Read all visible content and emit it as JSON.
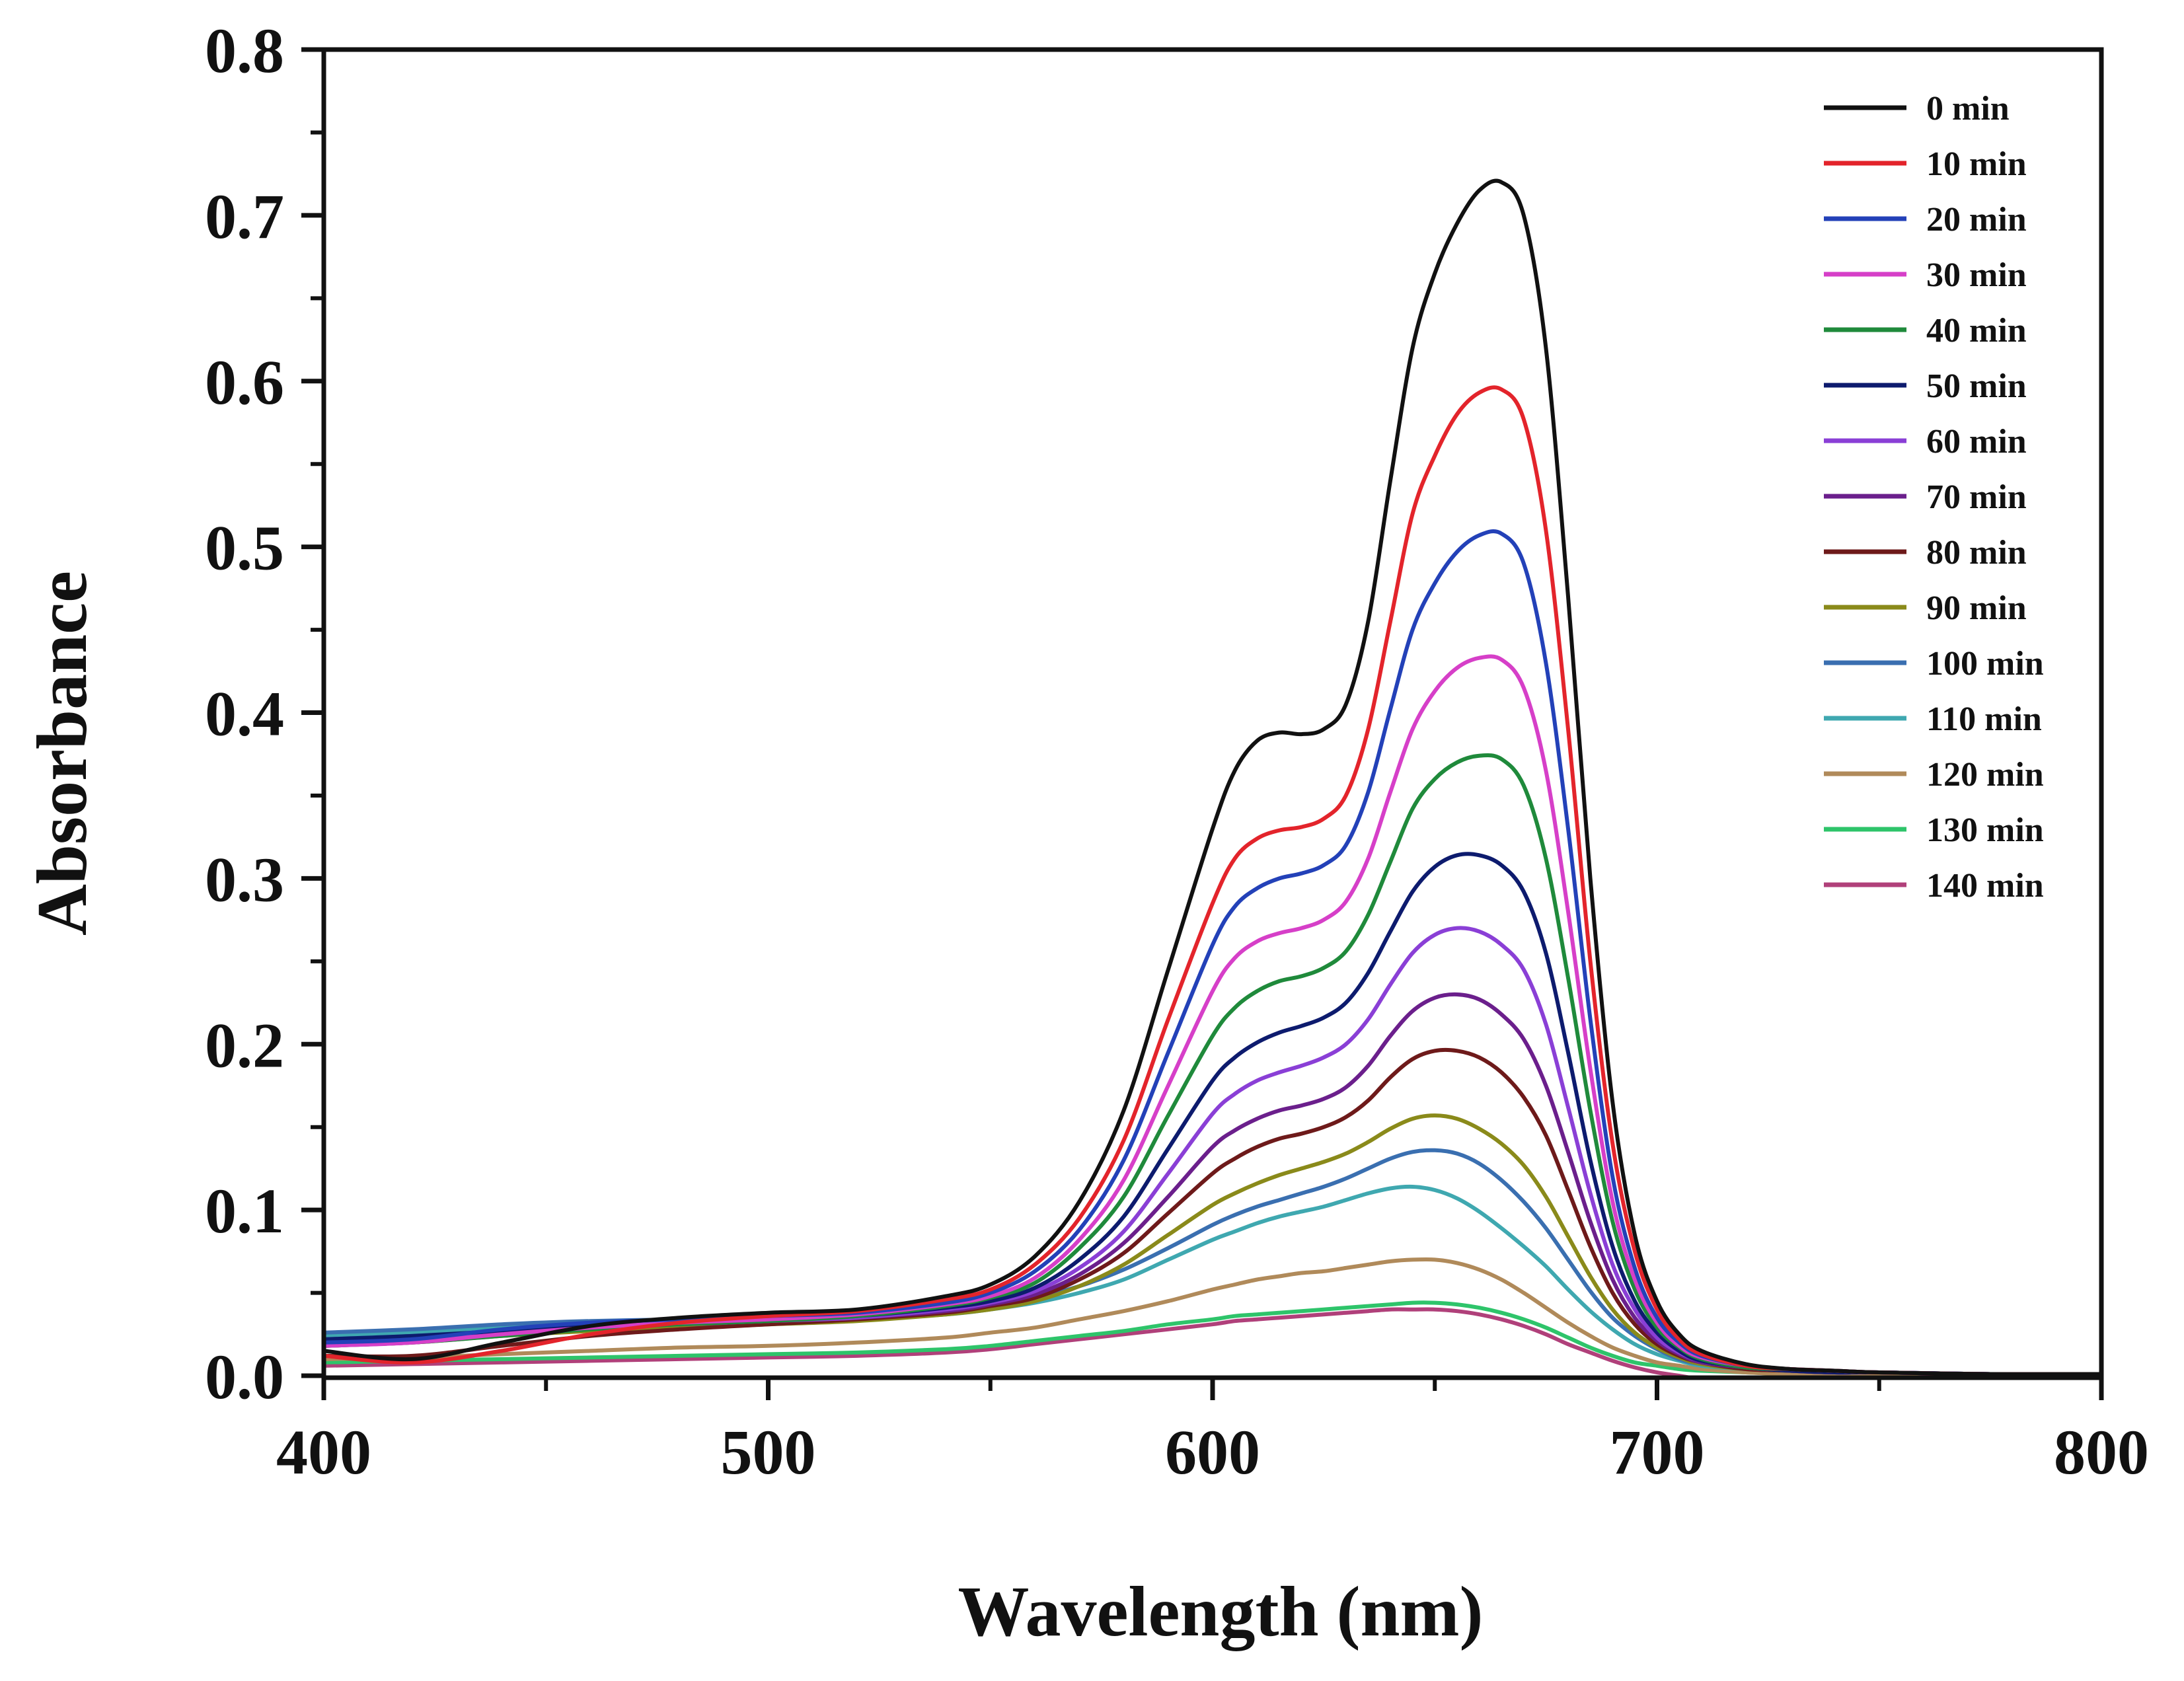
{
  "chart_data": {
    "type": "line",
    "title": "",
    "xlabel": "Wavelength (nm)",
    "ylabel": "Absorbance",
    "xlim": [
      400,
      800
    ],
    "ylim": [
      0.0,
      0.8
    ],
    "xticks": [
      400,
      500,
      600,
      700,
      800
    ],
    "xtick_labels": [
      "400",
      "500",
      "600",
      "700",
      "800"
    ],
    "yticks": [
      0.0,
      0.1,
      0.2,
      0.3,
      0.4,
      0.5,
      0.6,
      0.7,
      0.8
    ],
    "ytick_labels": [
      "0.0",
      "0.1",
      "0.2",
      "0.3",
      "0.4",
      "0.5",
      "0.6",
      "0.7",
      "0.8"
    ],
    "legend_position": "top-right",
    "grid": false,
    "x": [
      400,
      420,
      440,
      460,
      480,
      500,
      520,
      540,
      550,
      560,
      570,
      580,
      590,
      600,
      605,
      610,
      615,
      620,
      625,
      630,
      635,
      640,
      645,
      650,
      655,
      660,
      665,
      670,
      675,
      680,
      685,
      690,
      695,
      700,
      705,
      710,
      720,
      730,
      740,
      750,
      775,
      800
    ],
    "series": [
      {
        "name": "0 min",
        "color": "#111111",
        "values": [
          0.015,
          0.01,
          0.02,
          0.03,
          0.035,
          0.038,
          0.04,
          0.048,
          0.055,
          0.072,
          0.105,
          0.16,
          0.245,
          0.33,
          0.365,
          0.383,
          0.388,
          0.387,
          0.39,
          0.405,
          0.455,
          0.54,
          0.62,
          0.665,
          0.695,
          0.715,
          0.72,
          0.7,
          0.62,
          0.47,
          0.3,
          0.165,
          0.085,
          0.045,
          0.025,
          0.015,
          0.007,
          0.004,
          0.003,
          0.002,
          0.001,
          0.001
        ]
      },
      {
        "name": "10 min",
        "color": "#e3242b",
        "values": [
          0.012,
          0.008,
          0.015,
          0.025,
          0.032,
          0.036,
          0.039,
          0.046,
          0.052,
          0.067,
          0.095,
          0.142,
          0.215,
          0.285,
          0.312,
          0.324,
          0.329,
          0.331,
          0.336,
          0.35,
          0.39,
          0.455,
          0.52,
          0.555,
          0.58,
          0.593,
          0.595,
          0.577,
          0.51,
          0.39,
          0.25,
          0.14,
          0.075,
          0.04,
          0.022,
          0.013,
          0.006,
          0.004,
          0.003,
          0.002,
          0.001,
          0.001
        ]
      },
      {
        "name": "20 min",
        "color": "#2341b8",
        "values": [
          0.02,
          0.022,
          0.028,
          0.032,
          0.034,
          0.036,
          0.038,
          0.044,
          0.05,
          0.063,
          0.088,
          0.13,
          0.195,
          0.26,
          0.283,
          0.294,
          0.3,
          0.303,
          0.308,
          0.32,
          0.352,
          0.402,
          0.45,
          0.478,
          0.497,
          0.507,
          0.508,
          0.49,
          0.43,
          0.33,
          0.215,
          0.12,
          0.065,
          0.035,
          0.02,
          0.012,
          0.006,
          0.004,
          0.003,
          0.002,
          0.001,
          0.001
        ]
      },
      {
        "name": "30 min",
        "color": "#d63fc8",
        "values": [
          0.018,
          0.02,
          0.025,
          0.029,
          0.032,
          0.034,
          0.037,
          0.043,
          0.048,
          0.059,
          0.082,
          0.118,
          0.175,
          0.232,
          0.252,
          0.262,
          0.267,
          0.27,
          0.275,
          0.286,
          0.312,
          0.352,
          0.39,
          0.413,
          0.427,
          0.433,
          0.432,
          0.415,
          0.365,
          0.28,
          0.185,
          0.105,
          0.058,
          0.032,
          0.018,
          0.011,
          0.006,
          0.004,
          0.003,
          0.002,
          0.001,
          0.001
        ]
      },
      {
        "name": "40 min",
        "color": "#1f8a3b",
        "values": [
          0.018,
          0.02,
          0.024,
          0.028,
          0.031,
          0.033,
          0.036,
          0.042,
          0.047,
          0.056,
          0.077,
          0.108,
          0.157,
          0.205,
          0.222,
          0.232,
          0.238,
          0.241,
          0.246,
          0.256,
          0.278,
          0.31,
          0.342,
          0.36,
          0.37,
          0.374,
          0.372,
          0.356,
          0.312,
          0.24,
          0.16,
          0.093,
          0.052,
          0.029,
          0.017,
          0.01,
          0.005,
          0.004,
          0.003,
          0.002,
          0.001,
          0.001
        ]
      },
      {
        "name": "50 min",
        "color": "#0d1b6e",
        "values": [
          0.022,
          0.024,
          0.027,
          0.03,
          0.032,
          0.034,
          0.036,
          0.041,
          0.045,
          0.053,
          0.07,
          0.096,
          0.137,
          0.178,
          0.192,
          0.201,
          0.207,
          0.211,
          0.216,
          0.225,
          0.243,
          0.268,
          0.292,
          0.307,
          0.314,
          0.314,
          0.308,
          0.292,
          0.255,
          0.195,
          0.13,
          0.078,
          0.045,
          0.026,
          0.015,
          0.009,
          0.005,
          0.003,
          0.002,
          0.002,
          0.001,
          0.001
        ]
      },
      {
        "name": "60 min",
        "color": "#8a3fd6",
        "values": [
          0.02,
          0.022,
          0.026,
          0.029,
          0.031,
          0.033,
          0.035,
          0.04,
          0.044,
          0.051,
          0.065,
          0.087,
          0.122,
          0.158,
          0.17,
          0.178,
          0.183,
          0.187,
          0.192,
          0.2,
          0.215,
          0.236,
          0.255,
          0.266,
          0.27,
          0.268,
          0.26,
          0.245,
          0.212,
          0.162,
          0.11,
          0.067,
          0.04,
          0.023,
          0.014,
          0.009,
          0.005,
          0.003,
          0.002,
          0.002,
          0.001,
          0.001
        ]
      },
      {
        "name": "70 min",
        "color": "#6b1f8c",
        "values": [
          0.02,
          0.022,
          0.026,
          0.029,
          0.031,
          0.033,
          0.035,
          0.039,
          0.043,
          0.049,
          0.061,
          0.08,
          0.108,
          0.138,
          0.148,
          0.155,
          0.16,
          0.163,
          0.167,
          0.174,
          0.187,
          0.205,
          0.22,
          0.228,
          0.23,
          0.227,
          0.218,
          0.203,
          0.175,
          0.135,
          0.093,
          0.058,
          0.035,
          0.021,
          0.013,
          0.008,
          0.005,
          0.003,
          0.002,
          0.002,
          0.001,
          0.001
        ]
      },
      {
        "name": "80 min",
        "color": "#6e1a1a",
        "values": [
          0.012,
          0.012,
          0.018,
          0.024,
          0.028,
          0.031,
          0.034,
          0.038,
          0.042,
          0.047,
          0.058,
          0.074,
          0.098,
          0.122,
          0.131,
          0.138,
          0.143,
          0.146,
          0.15,
          0.156,
          0.166,
          0.18,
          0.191,
          0.196,
          0.196,
          0.192,
          0.183,
          0.168,
          0.145,
          0.112,
          0.078,
          0.05,
          0.031,
          0.019,
          0.012,
          0.008,
          0.004,
          0.003,
          0.002,
          0.002,
          0.001,
          0.001
        ]
      },
      {
        "name": "90 min",
        "color": "#8a8a1a",
        "values": [
          0.018,
          0.02,
          0.024,
          0.027,
          0.029,
          0.031,
          0.033,
          0.037,
          0.04,
          0.045,
          0.054,
          0.067,
          0.085,
          0.103,
          0.11,
          0.116,
          0.121,
          0.125,
          0.129,
          0.134,
          0.141,
          0.149,
          0.155,
          0.157,
          0.155,
          0.149,
          0.14,
          0.127,
          0.108,
          0.084,
          0.06,
          0.04,
          0.026,
          0.017,
          0.011,
          0.007,
          0.004,
          0.003,
          0.002,
          0.002,
          0.001,
          0.001
        ]
      },
      {
        "name": "100 min",
        "color": "#3a6fb0",
        "values": [
          0.026,
          0.028,
          0.031,
          0.033,
          0.034,
          0.035,
          0.036,
          0.04,
          0.043,
          0.047,
          0.054,
          0.064,
          0.077,
          0.091,
          0.097,
          0.102,
          0.106,
          0.11,
          0.114,
          0.119,
          0.125,
          0.131,
          0.135,
          0.136,
          0.134,
          0.128,
          0.118,
          0.105,
          0.089,
          0.07,
          0.051,
          0.035,
          0.024,
          0.016,
          0.01,
          0.007,
          0.004,
          0.003,
          0.002,
          0.002,
          0.001,
          0.001
        ]
      },
      {
        "name": "110 min",
        "color": "#3fa8b0",
        "values": [
          0.024,
          0.026,
          0.029,
          0.031,
          0.032,
          0.033,
          0.034,
          0.037,
          0.04,
          0.044,
          0.05,
          0.058,
          0.07,
          0.082,
          0.087,
          0.092,
          0.096,
          0.099,
          0.102,
          0.106,
          0.11,
          0.113,
          0.114,
          0.112,
          0.107,
          0.099,
          0.089,
          0.078,
          0.066,
          0.052,
          0.039,
          0.028,
          0.019,
          0.013,
          0.009,
          0.006,
          0.004,
          0.003,
          0.002,
          0.002,
          0.001,
          0.001
        ]
      },
      {
        "name": "120 min",
        "color": "#b08a5a",
        "values": [
          0.01,
          0.011,
          0.013,
          0.015,
          0.017,
          0.018,
          0.02,
          0.023,
          0.026,
          0.029,
          0.034,
          0.039,
          0.045,
          0.052,
          0.055,
          0.058,
          0.06,
          0.062,
          0.063,
          0.065,
          0.067,
          0.069,
          0.07,
          0.07,
          0.068,
          0.064,
          0.058,
          0.05,
          0.041,
          0.032,
          0.024,
          0.017,
          0.012,
          0.008,
          0.006,
          0.004,
          0.002,
          0.001,
          0.001,
          0.001,
          0.0,
          0.0
        ]
      },
      {
        "name": "130 min",
        "color": "#2ec46a",
        "values": [
          0.008,
          0.009,
          0.01,
          0.011,
          0.012,
          0.013,
          0.014,
          0.016,
          0.018,
          0.021,
          0.024,
          0.027,
          0.031,
          0.034,
          0.036,
          0.037,
          0.038,
          0.039,
          0.04,
          0.041,
          0.042,
          0.043,
          0.044,
          0.044,
          0.043,
          0.041,
          0.038,
          0.034,
          0.029,
          0.023,
          0.017,
          0.012,
          0.008,
          0.006,
          0.004,
          0.003,
          0.002,
          0.001,
          0.001,
          0.0,
          -0.002,
          -0.002
        ]
      },
      {
        "name": "140 min",
        "color": "#b0407a",
        "values": [
          0.006,
          0.007,
          0.008,
          0.009,
          0.01,
          0.011,
          0.012,
          0.014,
          0.016,
          0.019,
          0.022,
          0.025,
          0.028,
          0.031,
          0.033,
          0.034,
          0.035,
          0.036,
          0.037,
          0.038,
          0.039,
          0.04,
          0.04,
          0.04,
          0.039,
          0.037,
          0.034,
          0.03,
          0.025,
          0.019,
          0.014,
          0.009,
          0.005,
          0.002,
          0.0,
          -0.002,
          -0.003,
          -0.004,
          -0.004,
          -0.004,
          -0.005,
          -0.005
        ]
      }
    ]
  }
}
